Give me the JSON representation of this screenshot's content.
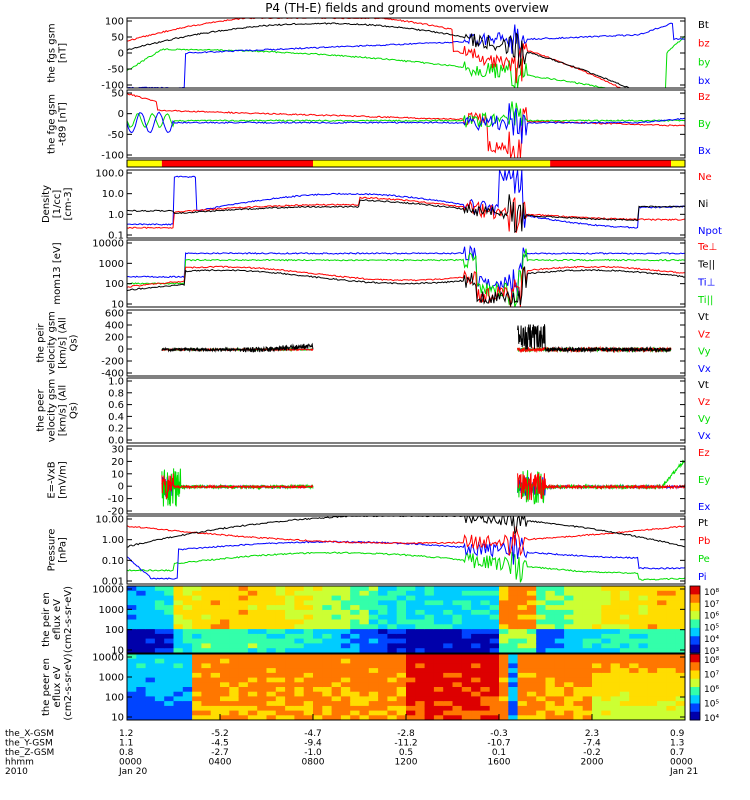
{
  "title": "P4 (TH-E) fields and ground moments overview",
  "colors": {
    "black": "#000000",
    "red": "#ff0000",
    "green": "#00dd00",
    "blue": "#0000ff",
    "yellow": "#ffff00"
  },
  "x_axis": {
    "ticks": [
      "0000",
      "0400",
      "0800",
      "1200",
      "1600",
      "2000",
      "0000"
    ],
    "row_labels": [
      "the_X-GSM",
      "the_Y-GSM",
      "the_Z-GSM",
      "hhmm",
      "2010"
    ],
    "rows": [
      [
        "1.2",
        "-5.2",
        "-4.7",
        "-2.8",
        "-0.3",
        "2.3",
        "0.9"
      ],
      [
        "1.1",
        "-4.5",
        "-9.4",
        "-11.2",
        "-10.7",
        "-7.4",
        "1.3"
      ],
      [
        "0.8",
        "-2.7",
        "-1.0",
        "0.5",
        "0.1",
        "-0.2",
        "0.7"
      ],
      [
        "0000",
        "0400",
        "0800",
        "1200",
        "1600",
        "2000",
        "0000"
      ],
      [
        "Jan 20",
        "",
        "",
        "",
        "",
        "",
        "Jan 21"
      ]
    ]
  },
  "chart_data": [
    {
      "type": "line",
      "ylabel": "the fgs gsm [nT]",
      "ylim": [
        -100,
        100
      ],
      "yticks": [
        "100",
        "50",
        "0",
        "-50",
        "-100"
      ],
      "legend": [
        {
          "name": "Bt",
          "color": "black"
        },
        {
          "name": "bz",
          "color": "red"
        },
        {
          "name": "by",
          "color": "green"
        },
        {
          "name": "bx",
          "color": "blue"
        }
      ]
    },
    {
      "type": "line",
      "ylabel": "the fge gsm -t89 [nT]",
      "ylim": [
        -125,
        50
      ],
      "yticks": [
        "50",
        "0",
        "-50",
        "-100"
      ],
      "legend": [
        {
          "name": "Bz",
          "color": "red"
        },
        {
          "name": "By",
          "color": "green"
        },
        {
          "name": "Bx",
          "color": "blue"
        }
      ]
    },
    {
      "type": "bar",
      "ylabel": "",
      "bar_segments": [
        {
          "from": 0,
          "to": 1.5,
          "color": "yellow"
        },
        {
          "from": 1.5,
          "to": 8.0,
          "color": "red"
        },
        {
          "from": 8.0,
          "to": 18.2,
          "color": "yellow"
        },
        {
          "from": 18.2,
          "to": 23.4,
          "color": "red"
        },
        {
          "from": 23.4,
          "to": 24,
          "color": "yellow"
        }
      ]
    },
    {
      "type": "line",
      "ylabel": "Density [1/cc] [cm-3]",
      "log": true,
      "ylim": [
        0.1,
        100
      ],
      "yticks": [
        "100.0",
        "10.0",
        "1.0",
        "0.1"
      ],
      "legend": [
        {
          "name": "Ne",
          "color": "red"
        },
        {
          "name": "Ni",
          "color": "black"
        },
        {
          "name": "Npot",
          "color": "blue"
        }
      ]
    },
    {
      "type": "line",
      "ylabel": "mom13 [eV]",
      "log": true,
      "ylim": [
        10,
        10000
      ],
      "yticks": [
        "10000",
        "1000",
        "100",
        "10"
      ],
      "legend": [
        {
          "name": "Te⊥",
          "color": "red"
        },
        {
          "name": "Te||",
          "color": "black"
        },
        {
          "name": "Ti⊥",
          "color": "blue"
        },
        {
          "name": "Ti||",
          "color": "green"
        }
      ]
    },
    {
      "type": "line",
      "ylabel": "the peir velocity gsm [km/s] (All Qs)",
      "ylim": [
        -400,
        600
      ],
      "yticks": [
        "600",
        "400",
        "200",
        "0",
        "-200",
        "-400"
      ],
      "legend": [
        {
          "name": "Vt",
          "color": "black"
        },
        {
          "name": "Vz",
          "color": "red"
        },
        {
          "name": "Vy",
          "color": "green"
        },
        {
          "name": "Vx",
          "color": "blue"
        }
      ]
    },
    {
      "type": "line",
      "ylabel": "the peer velocity gsm [km/s] (All Qs)",
      "ylim": [
        0,
        1
      ],
      "yticks": [
        "1.0",
        "0.8",
        "0.6",
        "0.4",
        "0.2",
        "0.0"
      ],
      "legend": [
        {
          "name": "Vt",
          "color": "black"
        },
        {
          "name": "Vz",
          "color": "red"
        },
        {
          "name": "Vy",
          "color": "green"
        },
        {
          "name": "Vx",
          "color": "blue"
        }
      ]
    },
    {
      "type": "line",
      "ylabel": "E=-VxB [mV/m]",
      "ylim": [
        -20,
        30
      ],
      "yticks": [
        "30",
        "20",
        "10",
        "0",
        "-10",
        "-20"
      ],
      "legend": [
        {
          "name": "Ez",
          "color": "red"
        },
        {
          "name": "Ey",
          "color": "green"
        },
        {
          "name": "Ex",
          "color": "blue"
        }
      ]
    },
    {
      "type": "line",
      "ylabel": "Pressure [nPa]",
      "log": true,
      "ylim": [
        0.005,
        10
      ],
      "yticks": [
        "10.00",
        "1.00",
        "0.10",
        "0.01"
      ],
      "legend": [
        {
          "name": "Pt",
          "color": "black"
        },
        {
          "name": "Pb",
          "color": "red"
        },
        {
          "name": "Pe",
          "color": "green"
        },
        {
          "name": "Pi",
          "color": "blue"
        }
      ]
    },
    {
      "type": "heatmap",
      "ylabel": "the peir en eflux eV (cm2-s-sr-eV)",
      "log": true,
      "ylim": [
        7,
        20000
      ],
      "yticks": [
        "10000",
        "1000",
        "100",
        "10"
      ],
      "colorbar": [
        "10⁸",
        "10⁷",
        "10⁶",
        "10⁵",
        "10⁴",
        "10³"
      ]
    },
    {
      "type": "heatmap",
      "ylabel": "the peer en eflux eV (cm2-s-sr-eV)",
      "log": true,
      "ylim": [
        7,
        20000
      ],
      "yticks": [
        "10000",
        "1000",
        "100",
        "10"
      ],
      "colorbar": [
        "10⁸",
        "10⁷",
        "10⁶",
        "10⁵",
        "10⁴"
      ]
    }
  ]
}
